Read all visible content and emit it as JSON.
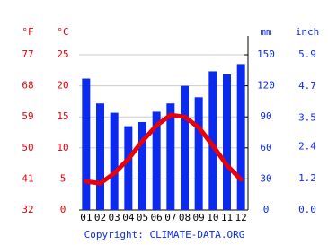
{
  "chart_data": {
    "type": "climate",
    "categories": [
      "01",
      "02",
      "03",
      "04",
      "05",
      "06",
      "07",
      "08",
      "09",
      "10",
      "11",
      "12"
    ],
    "series": [
      {
        "color": "#0a2af0",
        "axis": "y2",
        "values": [
          127,
          103,
          94,
          81,
          85,
          95,
          103,
          120,
          109,
          134,
          131,
          141
        ]
      },
      {
        "color": "#e8000b",
        "values": [
          4.6,
          4.3,
          5.9,
          8.2,
          11.1,
          13.6,
          15.3,
          15.0,
          13.3,
          10.4,
          7.2,
          4.9
        ]
      }
    ],
    "ylabel": "°C",
    "ylim": [
      0,
      25
    ],
    "yticks": [
      0,
      5,
      10,
      15,
      20,
      25
    ],
    "yflabel": "°F",
    "yflim": [
      32,
      77
    ],
    "yfticks": [
      32,
      41,
      50,
      59,
      68,
      77
    ],
    "y2label": "mm",
    "y2lim": [
      0,
      150
    ],
    "y2ticks": [
      0,
      30,
      60,
      90,
      120,
      150
    ],
    "y3label": "inch",
    "y3lim": [
      0,
      5.9
    ],
    "y3ticks": [
      {
        "value": 0,
        "label": "0.0"
      },
      1.2,
      2.4,
      3.5,
      4.7,
      5.9
    ],
    "grid": true,
    "source": "Copyright: CLIMATE-DATA.ORG"
  }
}
